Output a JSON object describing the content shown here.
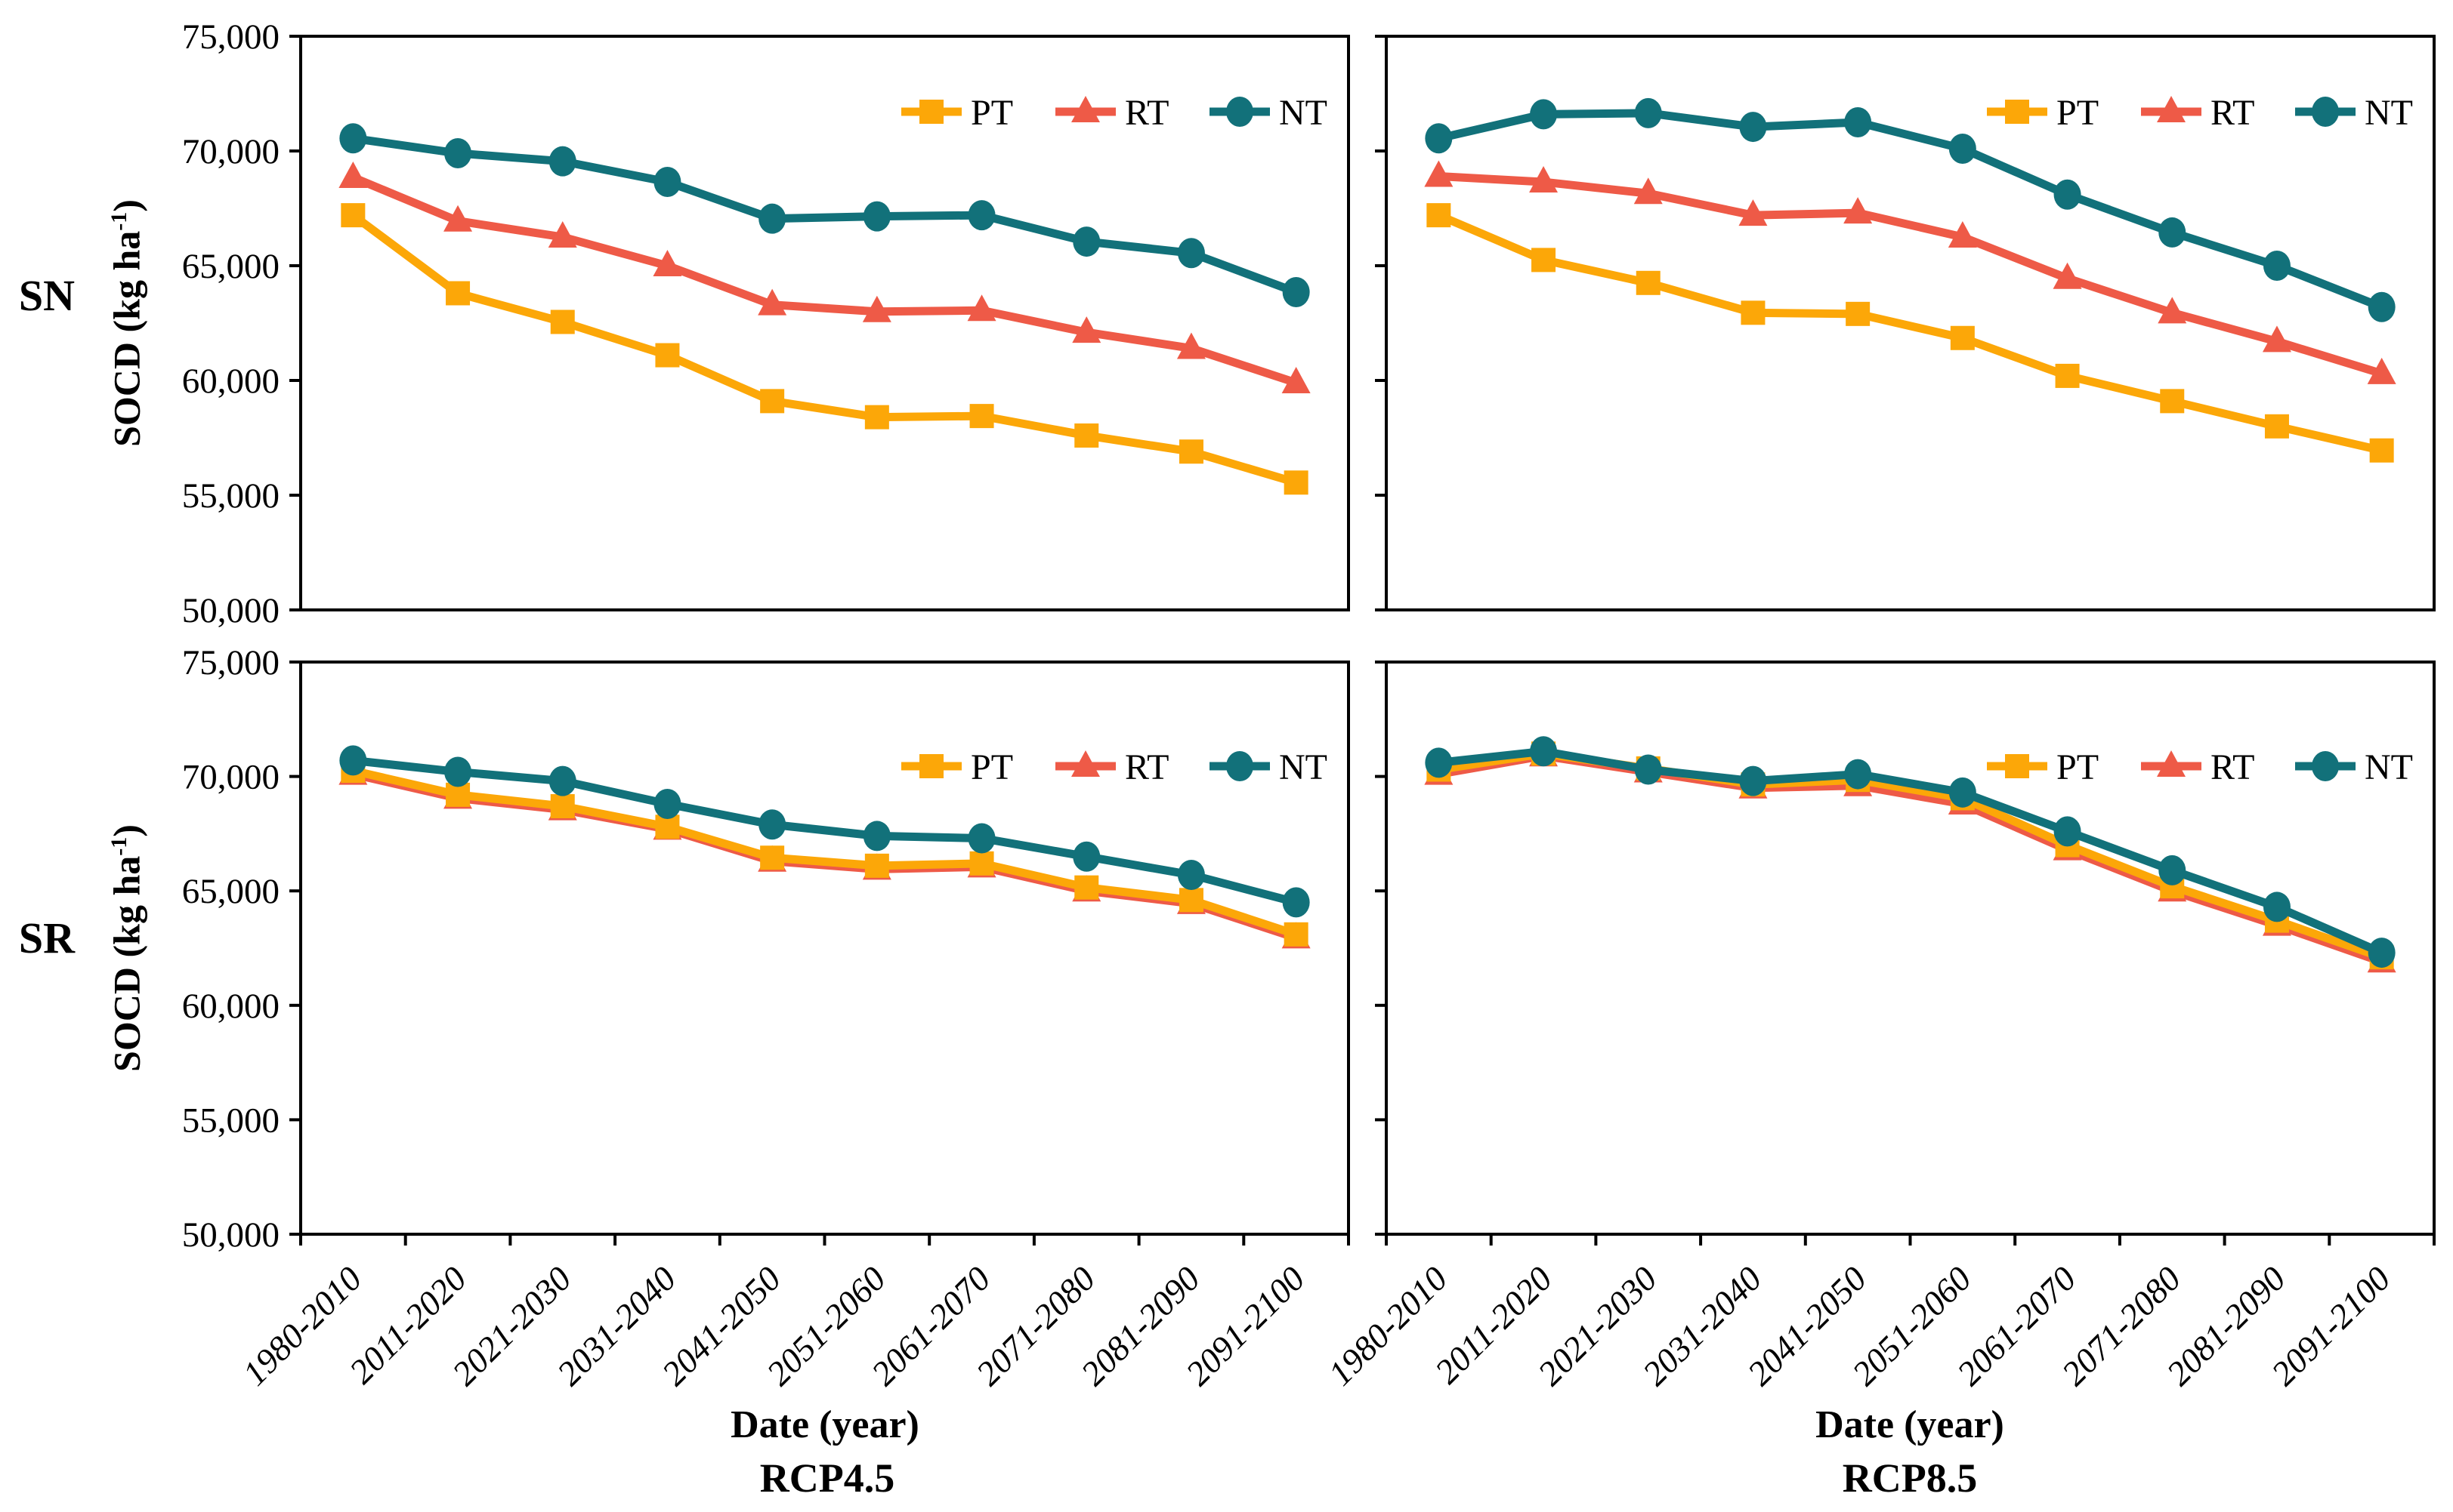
{
  "figure": {
    "row_labels": [
      "SN",
      "SR"
    ],
    "col_captions": [
      "RCP4.5",
      "RCP8.5"
    ],
    "x_axis_title": "Date (year)",
    "y_axis_title": {
      "prefix": "SOCD (kg ha",
      "sup": "-1",
      "suffix": ")"
    }
  },
  "legend": {
    "items": [
      {
        "label": "PT",
        "color": "#FCA708",
        "marker": "square"
      },
      {
        "label": "RT",
        "color": "#EE5A47",
        "marker": "triangle"
      },
      {
        "label": "NT",
        "color": "#12717A",
        "marker": "circle"
      }
    ]
  },
  "chart_data": {
    "type": "line",
    "xlabel": "Date (year)",
    "ylabel": "SOCD (kg ha-1)",
    "categories": [
      "1980-2010",
      "2011-2020",
      "2021-2030",
      "2031-2040",
      "2041-2050",
      "2051-2060",
      "2061-2070",
      "2071-2080",
      "2081-2090",
      "2091-2100"
    ],
    "y_axis": {
      "min": 50000,
      "max": 75000,
      "tick_step": 5000,
      "tick_values": [
        75000,
        70000,
        65000,
        60000,
        55000,
        50000
      ],
      "tick_labels": [
        "75,000",
        "70,000",
        "65,000",
        "60,000",
        "55,000",
        "50,000"
      ],
      "grid": false
    },
    "legend_position": "top-right-inside",
    "panels": [
      {
        "id": "sn-rcp45",
        "region": "SN",
        "scenario": "RCP4.5",
        "series": [
          {
            "name": "PT",
            "values": [
              67200,
              63800,
              62550,
              61100,
              59100,
              58400,
              58450,
              57600,
              56900,
              55550
            ]
          },
          {
            "name": "RT",
            "values": [
              68850,
              66950,
              66250,
              65000,
              63300,
              63000,
              63050,
              62100,
              61400,
              59900
            ]
          },
          {
            "name": "NT",
            "values": [
              70550,
              69900,
              69550,
              68650,
              67050,
              67150,
              67200,
              66050,
              65550,
              63850
            ]
          }
        ]
      },
      {
        "id": "sn-rcp85",
        "region": "SN",
        "scenario": "RCP8.5",
        "series": [
          {
            "name": "PT",
            "values": [
              67200,
              65250,
              64250,
              62950,
              62900,
              61850,
              60200,
              59100,
              58000,
              56950
            ]
          },
          {
            "name": "RT",
            "values": [
              68900,
              68650,
              68150,
              67200,
              67300,
              66250,
              64450,
              62950,
              61700,
              60300
            ]
          },
          {
            "name": "NT",
            "values": [
              70550,
              71600,
              71650,
              71050,
              71250,
              70100,
              68100,
              66450,
              65000,
              63200
            ]
          }
        ]
      },
      {
        "id": "sr-rcp45",
        "region": "SR",
        "scenario": "RCP4.5",
        "series": [
          {
            "name": "PT",
            "values": [
              70250,
              69200,
              68700,
              67800,
              66450,
              66100,
              66200,
              65150,
              64600,
              63100
            ]
          },
          {
            "name": "RT",
            "values": [
              70100,
              69050,
              68550,
              67700,
              66300,
              65950,
              66050,
              65000,
              64450,
              62950
            ]
          },
          {
            "name": "NT",
            "values": [
              70700,
              70200,
              69800,
              68800,
              67900,
              67400,
              67300,
              66500,
              65700,
              64500
            ]
          }
        ]
      },
      {
        "id": "sr-rcp85",
        "region": "SR",
        "scenario": "RCP8.5",
        "series": [
          {
            "name": "PT",
            "values": [
              70300,
              71000,
              70350,
              69650,
              69850,
              69050,
              67000,
              65200,
              63700,
              62100
            ]
          },
          {
            "name": "RT",
            "values": [
              70100,
              70900,
              70200,
              69500,
              69600,
              68800,
              66800,
              65000,
              63500,
              61900
            ]
          },
          {
            "name": "NT",
            "values": [
              70600,
              71100,
              70300,
              69800,
              70100,
              69300,
              67600,
              65900,
              64300,
              62300
            ]
          }
        ]
      }
    ]
  }
}
